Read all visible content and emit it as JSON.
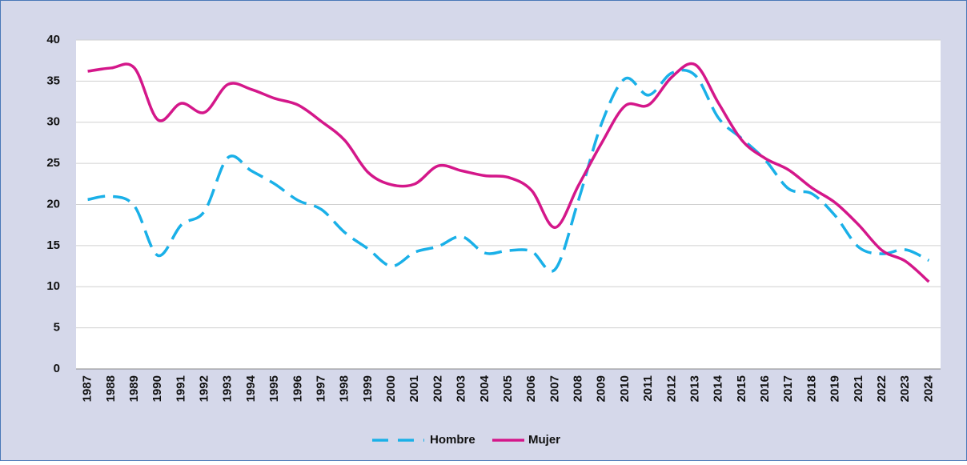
{
  "chart_data": {
    "type": "line",
    "categories": [
      "1987",
      "1988",
      "1989",
      "1990",
      "1991",
      "1992",
      "1993",
      "1994",
      "1995",
      "1996",
      "1997",
      "1998",
      "1999",
      "2000",
      "2001",
      "2002",
      "2003",
      "2004",
      "2005",
      "2006",
      "2007",
      "2008",
      "2009",
      "2010",
      "2011",
      "2012",
      "2013",
      "2014",
      "2015",
      "2016",
      "2017",
      "2018",
      "2019",
      "2021",
      "2022",
      "2023",
      "2024"
    ],
    "series": [
      {
        "name": "Hombre",
        "color": "#1ab0e8",
        "dashed": true,
        "values": [
          20.6,
          21.0,
          19.8,
          13.8,
          17.5,
          19.2,
          25.7,
          24.1,
          22.5,
          20.5,
          19.4,
          16.6,
          14.6,
          12.5,
          14.2,
          14.9,
          16.1,
          14.1,
          14.4,
          14.3,
          12.1,
          20.5,
          29.9,
          35.3,
          33.3,
          36.0,
          35.7,
          30.5,
          28.0,
          25.4,
          21.9,
          21.3,
          18.6,
          14.8,
          14.0,
          14.5,
          13.2
        ]
      },
      {
        "name": "Mujer",
        "color": "#d4178a",
        "dashed": false,
        "values": [
          36.2,
          36.6,
          36.6,
          30.3,
          32.3,
          31.2,
          34.6,
          34.0,
          32.9,
          32.1,
          30.1,
          27.8,
          23.9,
          22.4,
          22.5,
          24.7,
          24.1,
          23.5,
          23.3,
          21.7,
          17.2,
          22.3,
          27.5,
          32.0,
          32.1,
          35.5,
          37.0,
          32.3,
          27.8,
          25.6,
          24.2,
          22.0,
          20.2,
          17.5,
          14.4,
          13.1,
          10.6
        ]
      }
    ],
    "ylim": [
      0,
      40
    ],
    "yticks": [
      0,
      5,
      10,
      15,
      20,
      25,
      30,
      35,
      40
    ],
    "grid": true,
    "legend": "bottom"
  }
}
